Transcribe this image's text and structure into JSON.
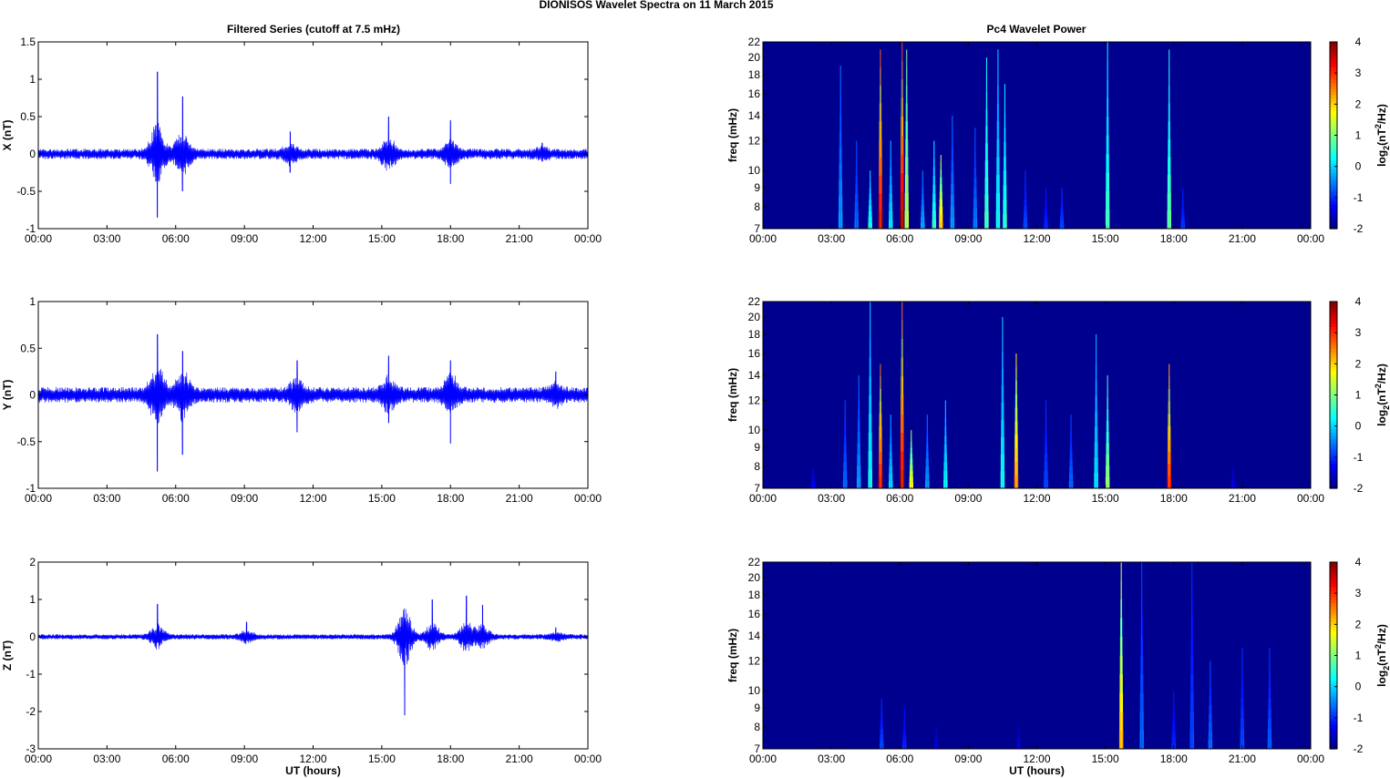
{
  "title": "DIONISOS Wavelet Spectra on 11 March     2015",
  "left_column_title": "Filtered Series (cutoff at 7.5 mHz)",
  "right_column_title": "Pc4 Wavelet Power",
  "colors": {
    "trace": "#0000ff",
    "spectrum_background": "#00008f",
    "axis": "#000000"
  },
  "chart_data": [
    {
      "type": "line",
      "name_key": "X",
      "title": "Filtered Series (cutoff at 7.5 mHz)",
      "xlabel": "",
      "ylabel": "X (nT)",
      "xlim": [
        "00:00",
        "00:00"
      ],
      "x_tick_labels": [
        "00:00",
        "03:00",
        "06:00",
        "09:00",
        "12:00",
        "15:00",
        "18:00",
        "21:00",
        "00:00"
      ],
      "ylim": [
        -1,
        1.5
      ],
      "y_ticks": [
        -1,
        -0.5,
        0,
        0.5,
        1,
        1.5
      ],
      "y_tick_labels": [
        "-1",
        "-0.5",
        "0",
        "0.5",
        "1",
        "1.5"
      ],
      "baseline_amplitude": 0.05,
      "bursts": [
        {
          "hour": 5.2,
          "peak": 1.1,
          "trough": -0.85
        },
        {
          "hour": 6.3,
          "peak": 0.77,
          "trough": -0.5
        },
        {
          "hour": 11.0,
          "peak": 0.3,
          "trough": -0.25
        },
        {
          "hour": 15.3,
          "peak": 0.5,
          "trough": -0.15
        },
        {
          "hour": 18.0,
          "peak": 0.45,
          "trough": -0.4
        },
        {
          "hour": 22.0,
          "peak": 0.15,
          "trough": -0.1
        }
      ]
    },
    {
      "type": "line",
      "name_key": "Y",
      "title": "",
      "xlabel": "",
      "ylabel": "Y (nT)",
      "xlim": [
        "00:00",
        "00:00"
      ],
      "x_tick_labels": [
        "00:00",
        "03:00",
        "06:00",
        "09:00",
        "12:00",
        "15:00",
        "18:00",
        "21:00",
        "00:00"
      ],
      "ylim": [
        -1,
        1
      ],
      "y_ticks": [
        -1,
        -0.5,
        0,
        0.5,
        1
      ],
      "y_tick_labels": [
        "-1",
        "-0.5",
        "0",
        "0.5",
        "1"
      ],
      "baseline_amplitude": 0.06,
      "bursts": [
        {
          "hour": 5.2,
          "peak": 0.65,
          "trough": -0.82
        },
        {
          "hour": 6.3,
          "peak": 0.47,
          "trough": -0.64
        },
        {
          "hour": 11.3,
          "peak": 0.37,
          "trough": -0.4
        },
        {
          "hour": 15.3,
          "peak": 0.42,
          "trough": -0.3
        },
        {
          "hour": 18.0,
          "peak": 0.37,
          "trough": -0.52
        },
        {
          "hour": 22.6,
          "peak": 0.25,
          "trough": -0.1
        }
      ]
    },
    {
      "type": "line",
      "name_key": "Z",
      "title": "",
      "xlabel": "UT (hours)",
      "ylabel": "Z (nT)",
      "xlim": [
        "00:00",
        "00:00"
      ],
      "x_tick_labels": [
        "00:00",
        "03:00",
        "06:00",
        "09:00",
        "12:00",
        "15:00",
        "18:00",
        "21:00",
        "00:00"
      ],
      "ylim": [
        -3,
        2
      ],
      "y_ticks": [
        -3,
        -2,
        -1,
        0,
        1,
        2
      ],
      "y_tick_labels": [
        "-3",
        "-2",
        "-1",
        "0",
        "1",
        "2"
      ],
      "baseline_amplitude": 0.05,
      "bursts": [
        {
          "hour": 5.2,
          "peak": 0.88,
          "trough": -0.15
        },
        {
          "hour": 9.1,
          "peak": 0.4,
          "trough": -0.1
        },
        {
          "hour": 16.0,
          "peak": 0.5,
          "trough": -2.1
        },
        {
          "hour": 17.2,
          "peak": 1.0,
          "trough": -0.2
        },
        {
          "hour": 18.7,
          "peak": 1.1,
          "trough": -0.2
        },
        {
          "hour": 19.4,
          "peak": 0.85,
          "trough": -0.15
        },
        {
          "hour": 22.6,
          "peak": 0.25,
          "trough": -0.1
        }
      ]
    },
    {
      "type": "heatmap",
      "title": "Pc4 Wavelet Power",
      "xlabel": "",
      "ylabel": "freq (mHz)",
      "x_tick_labels": [
        "00:00",
        "03:00",
        "06:00",
        "09:00",
        "12:00",
        "15:00",
        "18:00",
        "21:00",
        "00:00"
      ],
      "ylim": [
        7,
        22
      ],
      "y_ticks": [
        7,
        8,
        9,
        10,
        12,
        14,
        16,
        18,
        20,
        22
      ],
      "y_scale": "log",
      "colorbar_label": "log2(nT2/Hz)",
      "colorbar_ticks": [
        -2,
        -1,
        0,
        1,
        2,
        3,
        4
      ],
      "clim": [
        -2,
        4
      ],
      "streaks": [
        {
          "hour": 3.4,
          "top_freq": 19,
          "power": -0.3
        },
        {
          "hour": 4.1,
          "top_freq": 12,
          "power": -0.6
        },
        {
          "hour": 4.7,
          "top_freq": 10,
          "power": 0.5
        },
        {
          "hour": 5.15,
          "top_freq": 21,
          "power": 3.6
        },
        {
          "hour": 5.6,
          "top_freq": 12,
          "power": 0.2
        },
        {
          "hour": 6.1,
          "top_freq": 22,
          "power": 3.9
        },
        {
          "hour": 6.3,
          "top_freq": 21,
          "power": 1.5
        },
        {
          "hour": 7.0,
          "top_freq": 10,
          "power": -0.2
        },
        {
          "hour": 7.5,
          "top_freq": 12,
          "power": 0.6
        },
        {
          "hour": 7.8,
          "top_freq": 11,
          "power": 2.2
        },
        {
          "hour": 8.3,
          "top_freq": 14,
          "power": -0.3
        },
        {
          "hour": 9.3,
          "top_freq": 13,
          "power": -0.5
        },
        {
          "hour": 9.8,
          "top_freq": 20,
          "power": 0.8
        },
        {
          "hour": 10.3,
          "top_freq": 21,
          "power": 0.4
        },
        {
          "hour": 10.6,
          "top_freq": 17,
          "power": 0.6
        },
        {
          "hour": 11.5,
          "top_freq": 10,
          "power": -0.8
        },
        {
          "hour": 12.4,
          "top_freq": 9,
          "power": -1.0
        },
        {
          "hour": 13.1,
          "top_freq": 9,
          "power": -0.8
        },
        {
          "hour": 15.1,
          "top_freq": 22,
          "power": 0.7
        },
        {
          "hour": 17.8,
          "top_freq": 21,
          "power": 0.9
        },
        {
          "hour": 18.4,
          "top_freq": 9,
          "power": -0.9
        }
      ]
    },
    {
      "type": "heatmap",
      "title": "",
      "xlabel": "",
      "ylabel": "freq (mHz)",
      "x_tick_labels": [
        "00:00",
        "03:00",
        "06:00",
        "09:00",
        "12:00",
        "15:00",
        "18:00",
        "21:00",
        "00:00"
      ],
      "ylim": [
        7,
        22
      ],
      "y_ticks": [
        7,
        8,
        9,
        10,
        12,
        14,
        16,
        18,
        20,
        22
      ],
      "y_scale": "log",
      "colorbar_label": "log2(nT2/Hz)",
      "colorbar_ticks": [
        -2,
        -1,
        0,
        1,
        2,
        3,
        4
      ],
      "clim": [
        -2,
        4
      ],
      "streaks": [
        {
          "hour": 2.2,
          "top_freq": 8,
          "power": -1.2
        },
        {
          "hour": 3.6,
          "top_freq": 12,
          "power": -0.6
        },
        {
          "hour": 4.2,
          "top_freq": 14,
          "power": -0.3
        },
        {
          "hour": 4.7,
          "top_freq": 22,
          "power": 0.4
        },
        {
          "hour": 5.15,
          "top_freq": 15,
          "power": 3.4
        },
        {
          "hour": 5.6,
          "top_freq": 11,
          "power": 0.1
        },
        {
          "hour": 6.1,
          "top_freq": 22,
          "power": 3.6
        },
        {
          "hour": 6.5,
          "top_freq": 10,
          "power": 1.8
        },
        {
          "hour": 7.2,
          "top_freq": 11,
          "power": -0.3
        },
        {
          "hour": 8.0,
          "top_freq": 12,
          "power": 0.3
        },
        {
          "hour": 10.5,
          "top_freq": 20,
          "power": 0.4
        },
        {
          "hour": 11.1,
          "top_freq": 16,
          "power": 2.6
        },
        {
          "hour": 12.4,
          "top_freq": 12,
          "power": -0.8
        },
        {
          "hour": 13.5,
          "top_freq": 11,
          "power": -0.6
        },
        {
          "hour": 14.6,
          "top_freq": 18,
          "power": 0.2
        },
        {
          "hour": 15.1,
          "top_freq": 14,
          "power": 1.2
        },
        {
          "hour": 17.8,
          "top_freq": 15,
          "power": 3.2
        },
        {
          "hour": 20.6,
          "top_freq": 8,
          "power": -1.4
        }
      ]
    },
    {
      "type": "heatmap",
      "title": "",
      "xlabel": "UT (hours)",
      "ylabel": "freq (mHz)",
      "x_tick_labels": [
        "00:00",
        "03:00",
        "06:00",
        "09:00",
        "12:00",
        "15:00",
        "18:00",
        "21:00",
        "00:00"
      ],
      "ylim": [
        7,
        22
      ],
      "y_ticks": [
        7,
        8,
        9,
        10,
        12,
        14,
        16,
        18,
        20,
        22
      ],
      "y_scale": "log",
      "colorbar_label": "log2(nT2/Hz)",
      "colorbar_ticks": [
        -2,
        -1,
        0,
        1,
        2,
        3,
        4
      ],
      "clim": [
        -2,
        4
      ],
      "streaks": [
        {
          "hour": 5.2,
          "top_freq": 9.5,
          "power": -0.8
        },
        {
          "hour": 6.2,
          "top_freq": 9,
          "power": -1.0
        },
        {
          "hour": 7.6,
          "top_freq": 8,
          "power": -1.4
        },
        {
          "hour": 11.2,
          "top_freq": 8,
          "power": -1.4
        },
        {
          "hour": 15.7,
          "top_freq": 22,
          "power": 2.3
        },
        {
          "hour": 16.6,
          "top_freq": 22,
          "power": -0.6
        },
        {
          "hour": 18.0,
          "top_freq": 10,
          "power": -1.0
        },
        {
          "hour": 18.8,
          "top_freq": 22,
          "power": -0.8
        },
        {
          "hour": 19.6,
          "top_freq": 12,
          "power": -0.6
        },
        {
          "hour": 21.0,
          "top_freq": 13,
          "power": -0.8
        },
        {
          "hour": 22.2,
          "top_freq": 13,
          "power": -0.7
        }
      ]
    }
  ]
}
